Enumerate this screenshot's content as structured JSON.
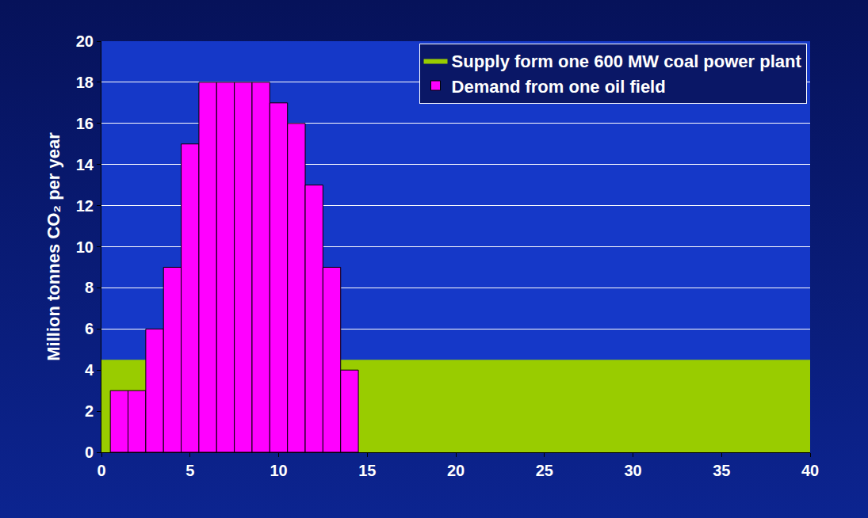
{
  "chart_data": {
    "type": "bar",
    "ylabel": "Million tonnes CO₂ per year",
    "xlim": [
      0,
      40
    ],
    "xticks": [
      0,
      5,
      10,
      15,
      20,
      25,
      30,
      35,
      40
    ],
    "ylim": [
      0,
      20
    ],
    "yticks": [
      0,
      2,
      4,
      6,
      8,
      10,
      12,
      14,
      16,
      18,
      20
    ],
    "grid": true,
    "legend": "top right",
    "series": [
      {
        "name": "Supply form one 600 MW coal power plant",
        "type": "area",
        "color": "#99cc00",
        "x": [
          0,
          40
        ],
        "values": [
          4.5,
          4.5
        ]
      },
      {
        "name": "Demand from one oil field",
        "type": "bar",
        "color": "#ff00ff",
        "x": [
          1,
          2,
          3,
          4,
          5,
          6,
          7,
          8,
          9,
          10,
          11,
          12,
          13,
          14
        ],
        "values": [
          3,
          3,
          6,
          9,
          15,
          18,
          18,
          18,
          18,
          17,
          16,
          13,
          9,
          4
        ]
      }
    ]
  }
}
